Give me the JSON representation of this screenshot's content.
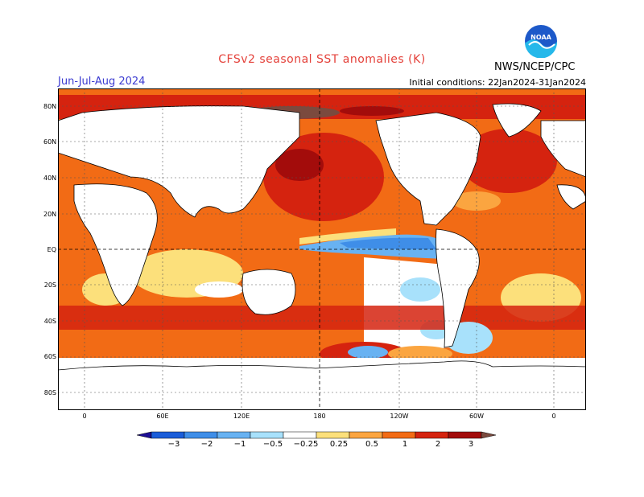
{
  "title": "CFSv2 seasonal SST anomalies (K)",
  "season": "Jun-Jul-Aug 2024",
  "initial_conditions": "Initial conditions: 22Jan2024-31Jan2024",
  "agency": "NWS/NCEP/CPC",
  "logo_text": "NOAA",
  "lat_labels": [
    "80N",
    "60N",
    "40N",
    "20N",
    "EQ",
    "20S",
    "40S",
    "60S",
    "80S"
  ],
  "lon_labels": [
    "0",
    "60E",
    "120E",
    "180",
    "120W",
    "60W",
    "0"
  ],
  "colorbar": {
    "labels": [
      "−3",
      "−2",
      "−1",
      "−0.5",
      "−0.25",
      "0.25",
      "0.5",
      "1",
      "2",
      "3"
    ],
    "colors": [
      "#1d0f95",
      "#1a5dd9",
      "#3f8ee8",
      "#68b2f2",
      "#a8e1fb",
      "#ffffff",
      "#fce07b",
      "#fba540",
      "#f26b15",
      "#d5230f",
      "#a30c0b",
      "#7b4a3e"
    ]
  },
  "colors": {
    "title": "#e4413a",
    "season": "#3b3bd1",
    "land": "#ffffff",
    "coast": "#000000"
  }
}
